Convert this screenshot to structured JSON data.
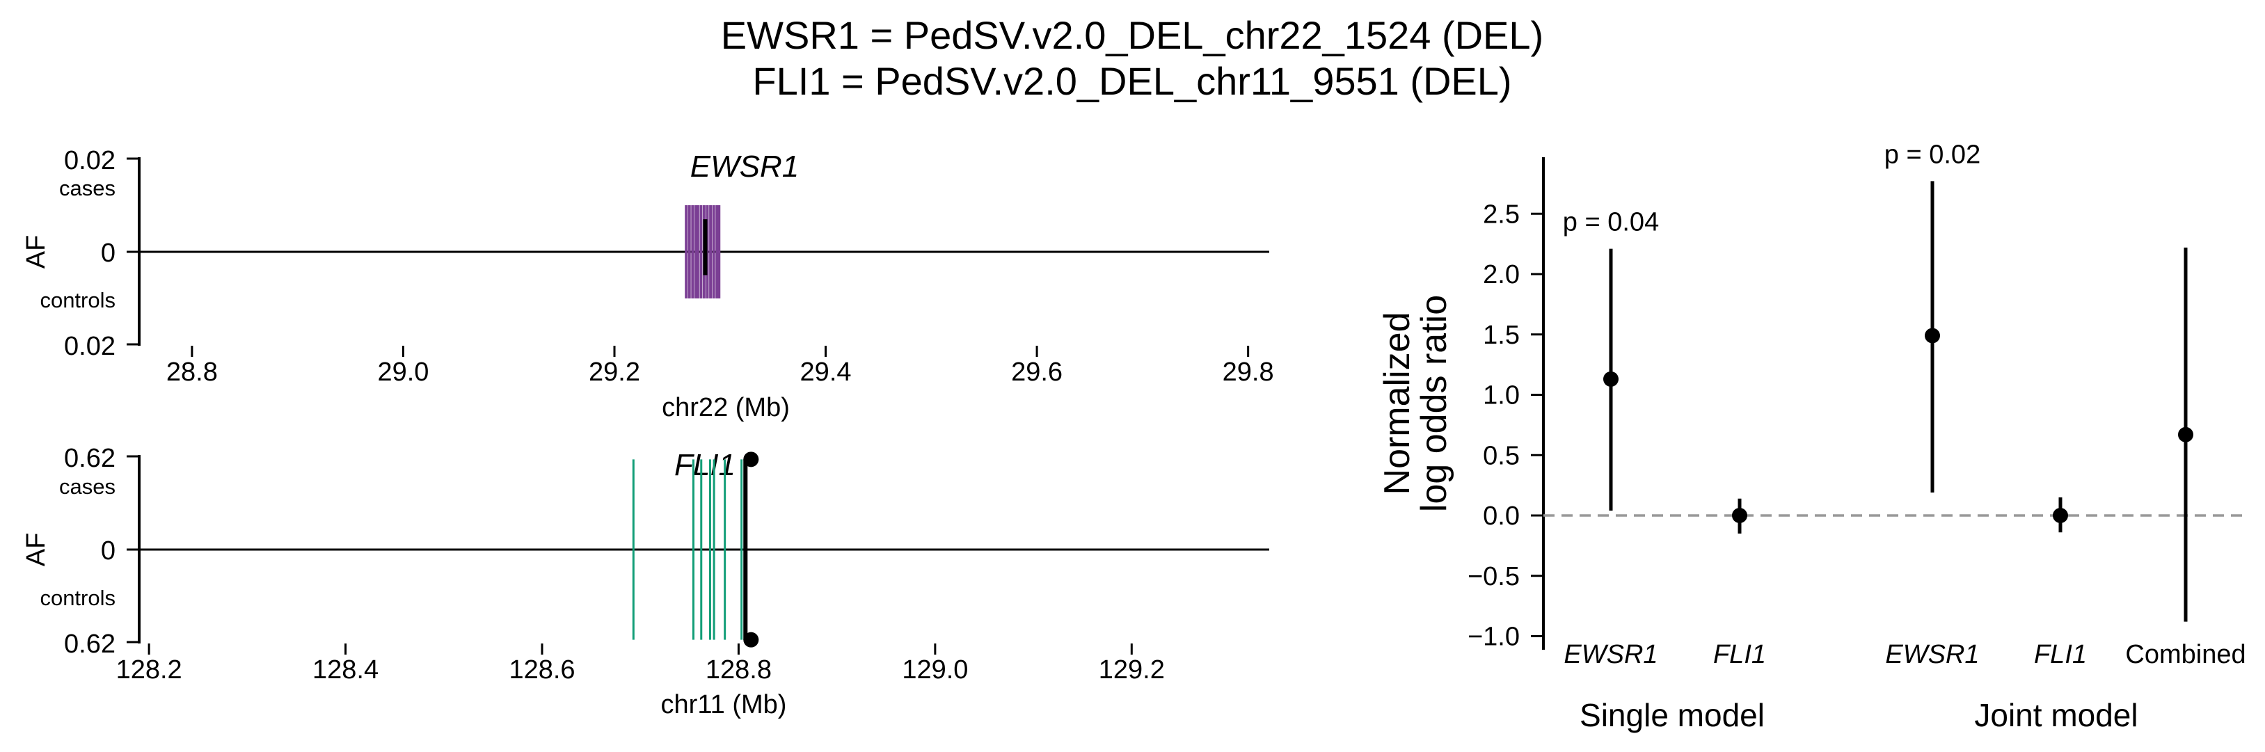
{
  "title": {
    "line1": "EWSR1 = PedSV.v2.0_DEL_chr22_1524 (DEL)",
    "line2": "FLI1 = PedSV.v2.0_DEL_chr11_9551 (DEL)"
  },
  "colors": {
    "ewsr1_variants": "#7B3F94",
    "fli1_variants": "#139E78",
    "highlight": "#000000",
    "null_line": "#999999"
  },
  "chart_data": [
    {
      "type": "scatter",
      "panel": "EWSR1 locus",
      "gene_label": "EWSR1",
      "xlabel": "chr22 (Mb)",
      "ylabel": "AF",
      "ytick_top": "0.02",
      "ytick_mid": "0",
      "ytick_bottom": "0.02",
      "label_cases": "cases",
      "label_controls": "controls",
      "xlim": [
        28.75,
        29.82
      ],
      "ylim": [
        -0.02,
        0.02
      ],
      "xticks": [
        {
          "value": 28.8,
          "label": "28.8"
        },
        {
          "value": 29.0,
          "label": "29.0"
        },
        {
          "value": 29.2,
          "label": "29.2"
        },
        {
          "value": 29.4,
          "label": "29.4"
        },
        {
          "value": 29.6,
          "label": "29.6"
        },
        {
          "value": 29.8,
          "label": "29.8"
        }
      ],
      "variant_positions": [
        29.268,
        29.271,
        29.274,
        29.277,
        29.279,
        29.282,
        29.285,
        29.288,
        29.291,
        29.294,
        29.297,
        29.299
      ],
      "variant_af_cases": 0.01,
      "variant_af_controls": 0.01,
      "highlight": {
        "position": 29.286,
        "af_cases": 0.007,
        "af_controls": 0.005
      }
    },
    {
      "type": "scatter",
      "panel": "FLI1 locus",
      "gene_label": "FLI1",
      "xlabel": "chr11 (Mb)",
      "ylabel": "AF",
      "ytick_top": "0.62",
      "ytick_mid": "0",
      "ytick_bottom": "0.62",
      "label_cases": "cases",
      "label_controls": "controls",
      "xlim": [
        128.19,
        129.34
      ],
      "ylim": [
        -0.62,
        0.62
      ],
      "xticks": [
        {
          "value": 128.2,
          "label": "128.2"
        },
        {
          "value": 128.4,
          "label": "128.4"
        },
        {
          "value": 128.6,
          "label": "128.6"
        },
        {
          "value": 128.8,
          "label": "128.8"
        },
        {
          "value": 129.0,
          "label": "129.0"
        },
        {
          "value": 129.2,
          "label": "129.2"
        }
      ],
      "variant_positions": [
        128.693,
        128.754,
        128.762,
        128.771,
        128.775,
        128.786,
        128.803,
        128.806
      ],
      "variant_af_cases": 0.6,
      "variant_af_controls": 0.6,
      "highlight": {
        "position": 128.807,
        "af_cases": 0.6,
        "af_controls": 0.6
      }
    },
    {
      "type": "scatter",
      "panel": "odds ratios",
      "ylabel_line1": "Normalized",
      "ylabel_line2": "log odds ratio",
      "ylim": [
        -1.0,
        2.9
      ],
      "yticks": [
        {
          "value": -1.0,
          "label": "−1.0"
        },
        {
          "value": -0.5,
          "label": "−0.5"
        },
        {
          "value": 0.0,
          "label": "0.0"
        },
        {
          "value": 0.5,
          "label": "0.5"
        },
        {
          "value": 1.0,
          "label": "1.0"
        },
        {
          "value": 1.5,
          "label": "1.5"
        },
        {
          "value": 2.0,
          "label": "2.0"
        },
        {
          "value": 2.5,
          "label": "2.5"
        }
      ],
      "null_value": 0.0,
      "groups": [
        "Single model",
        "Joint model"
      ],
      "points": [
        {
          "label": "EWSR1",
          "italic": true,
          "group": "Single model",
          "estimate": 1.13,
          "ci_low": 0.04,
          "ci_high": 2.21,
          "p_label": "p = 0.04"
        },
        {
          "label": "FLI1",
          "italic": true,
          "group": "Single model",
          "estimate": 0.0,
          "ci_low": -0.15,
          "ci_high": 0.14,
          "p_label": ""
        },
        {
          "label": "EWSR1",
          "italic": true,
          "group": "Joint model",
          "estimate": 1.49,
          "ci_low": 0.19,
          "ci_high": 2.77,
          "p_label": "p = 0.02"
        },
        {
          "label": "FLI1",
          "italic": true,
          "group": "Joint model",
          "estimate": 0.0,
          "ci_low": -0.14,
          "ci_high": 0.15,
          "p_label": ""
        },
        {
          "label": "Combined",
          "italic": false,
          "group": "Joint model",
          "estimate": 0.67,
          "ci_low": -0.88,
          "ci_high": 2.22,
          "p_label": ""
        }
      ]
    }
  ]
}
